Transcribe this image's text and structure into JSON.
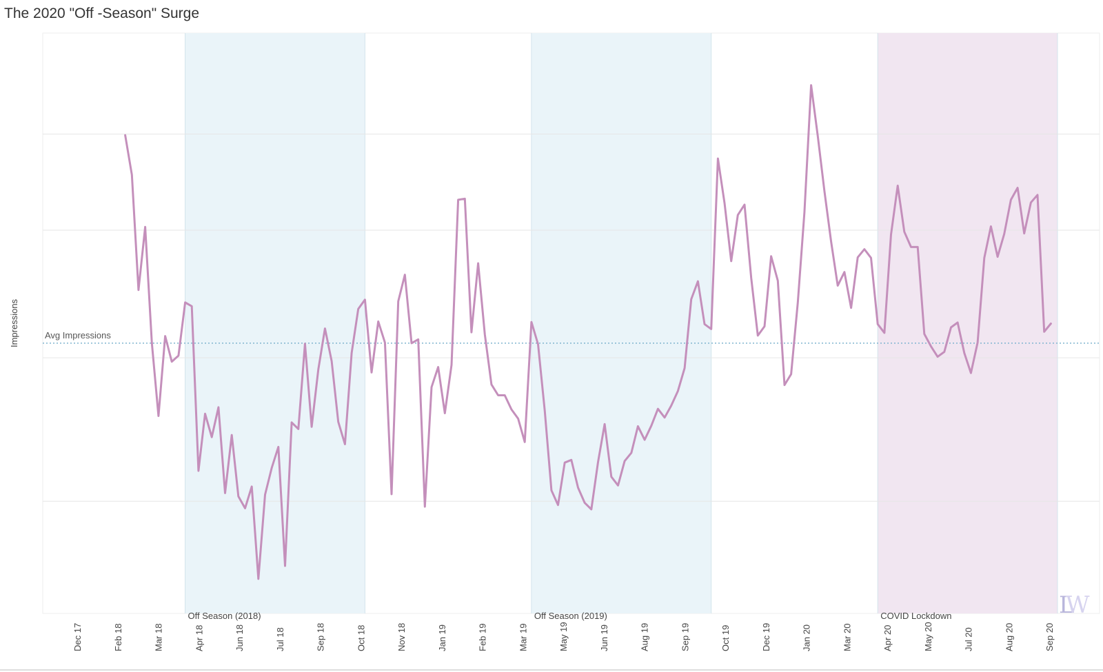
{
  "chart_data": {
    "type": "line",
    "title": "The 2020 \"Off -Season\" Surge",
    "ylabel": "Impressions",
    "xlabel": "",
    "grid": true,
    "y_tick_labels": "none",
    "ylim": [
      0,
      100
    ],
    "x_tick_labels": [
      "Dec 17",
      "Feb 18",
      "Mar 18",
      "Apr 18",
      "Jun 18",
      "Jul 18",
      "Sep 18",
      "Oct 18",
      "Nov 18",
      "Jan 19",
      "Feb 19",
      "Mar 19",
      "May 19",
      "Jun 19",
      "Aug 19",
      "Sep 19",
      "Oct 19",
      "Dec 19",
      "Jan 20",
      "Mar 20",
      "Apr 20",
      "May 20",
      "Jul 20",
      "Aug 20",
      "Sep 20"
    ],
    "reference_line": {
      "label": "Avg Impressions",
      "value": 45.7
    },
    "bands": [
      {
        "label": "Off Season (2018)",
        "start": 16,
        "end": 43,
        "color": "#eaf4f9"
      },
      {
        "label": "Off Season (2019)",
        "start": 68,
        "end": 95,
        "color": "#eaf4f9"
      },
      {
        "label": "COVID Lockdown",
        "start": 120,
        "end": 147,
        "color": "#f1e6f1"
      }
    ],
    "series": [
      {
        "color": "#c48fbb",
        "x": [
          7,
          8,
          9,
          10,
          11,
          12,
          13,
          14,
          15,
          16,
          17,
          18,
          19,
          20,
          21,
          22,
          23,
          24,
          25,
          26,
          27,
          28,
          29,
          30,
          31,
          32,
          33,
          34,
          35,
          36,
          37,
          38,
          39,
          40,
          41,
          42,
          43,
          44,
          45,
          46,
          47,
          48,
          49,
          50,
          51,
          52,
          53,
          54,
          55,
          56,
          57,
          58,
          59,
          60,
          61,
          62,
          63,
          64,
          65,
          66,
          67,
          68,
          69,
          70,
          71,
          72,
          73,
          74,
          75,
          76,
          77,
          78,
          79,
          80,
          81,
          82,
          83,
          84,
          85,
          86,
          87,
          88,
          89,
          90,
          91,
          92,
          93,
          94,
          95,
          96,
          97,
          98,
          99,
          100,
          101,
          102,
          103,
          104,
          105,
          106,
          107,
          108,
          109,
          110,
          111,
          112,
          113,
          114,
          115,
          116,
          117,
          118,
          119,
          120,
          121,
          122,
          123,
          124,
          125,
          126,
          127,
          128,
          129,
          130,
          131,
          132,
          133,
          134,
          135,
          136,
          137,
          138,
          139,
          140,
          141,
          142,
          143,
          144,
          145,
          146
        ],
        "values": [
          84,
          76.7,
          55.5,
          67.1,
          45.7,
          32.3,
          47,
          42.3,
          43.4,
          53.2,
          52.5,
          22.2,
          32.7,
          28.4,
          33.9,
          18.1,
          28.8,
          17.5,
          15.3,
          19.3,
          2.3,
          17.8,
          22.7,
          26.6,
          4.7,
          31.1,
          29.9,
          45.6,
          30.3,
          40.9,
          48.4,
          42.4,
          31.2,
          27.1,
          43.9,
          52,
          53.7,
          40.3,
          49.7,
          45.8,
          17.9,
          53.4,
          58.3,
          45.7,
          46.4,
          15.6,
          37.6,
          41.3,
          32.8,
          41.7,
          72.1,
          72.3,
          47.7,
          60.4,
          47.3,
          38.1,
          36.1,
          36.1,
          33.5,
          31.8,
          27.5,
          49.6,
          45.5,
          33.3,
          18.6,
          15.9,
          23.7,
          24.2,
          19.1,
          16.3,
          15.1,
          23.8,
          30.8,
          21.1,
          19.5,
          24,
          25.5,
          30.4,
          27.9,
          30.5,
          33.6,
          32,
          34.2,
          36.9,
          41.1,
          53.8,
          57.1,
          49.2,
          48.3,
          79.7,
          71.5,
          60.8,
          69.3,
          71.2,
          57.7,
          47.1,
          48.8,
          61.7,
          57.2,
          38,
          40,
          53.2,
          69.8,
          93.2,
          83.8,
          73.7,
          64.4,
          56.3,
          58.8,
          52.2,
          61.5,
          63,
          61.4,
          49.2,
          47.6,
          65.7,
          74.7,
          66.2,
          63.4,
          63.4,
          47.4,
          45.1,
          43.2,
          44.1,
          48.6,
          49.5,
          43.9,
          40.2,
          45.8,
          61.4,
          67.2,
          61.6,
          65.8,
          72.1,
          74.3,
          65.9,
          71.6,
          73,
          47.8,
          49.3
        ]
      }
    ]
  },
  "logo": {
    "part1": "L",
    "part2": "W",
    "color1": "#b9b6dc",
    "color2": "#d6d3ef"
  }
}
